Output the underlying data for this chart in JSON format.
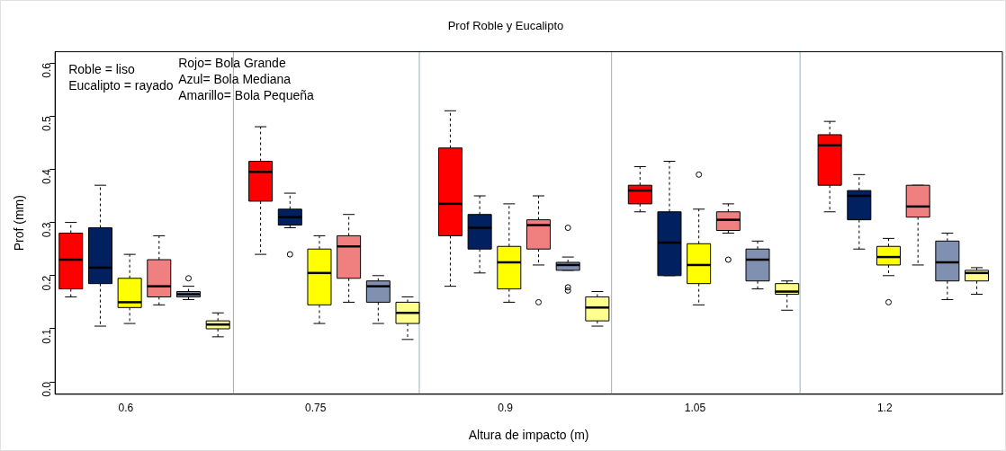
{
  "chart_data": {
    "type": "box",
    "title": "Prof Roble y Eucalipto",
    "xlabel": "Altura de impacto (m)",
    "ylabel": "Prof (mm)",
    "annotations": [
      "Roble = liso",
      "Eucalipto = rayado",
      "Rojo= Bola Grande",
      "Azul= Bola Mediana",
      "Amarillo= Bola Pequeña"
    ],
    "x": [
      0.6,
      0.75,
      0.9,
      1.05,
      1.2
    ],
    "xlim": [
      0.544,
      1.293
    ],
    "xticks": [
      0.6,
      0.75,
      0.9,
      1.05,
      1.2
    ],
    "ylim": [
      -0.023,
      0.621
    ],
    "yticks": [
      {
        "value": 0,
        "label": "0.0"
      },
      {
        "value": 0.1,
        "label": "0.1"
      },
      {
        "value": 0.2,
        "label": "0.2"
      },
      {
        "value": 0.3,
        "label": "0.3"
      },
      {
        "value": 0.4,
        "label": "0.4"
      },
      {
        "value": 0.5,
        "label": "0.5"
      },
      {
        "value": 0.6,
        "label": "0.6"
      }
    ],
    "grid": false,
    "legend": false,
    "ref_lines": [
      {
        "axis": "x",
        "value": 0.685,
        "color": "#8db4cc"
      },
      {
        "axis": "x",
        "value": 0.832,
        "color": "#8db4cc"
      },
      {
        "axis": "x",
        "value": 0.984,
        "color": "#8db4cc"
      },
      {
        "axis": "x",
        "value": 1.133,
        "color": "#8db4cc"
      }
    ],
    "series": [
      {
        "color": "#ff0000",
        "boxes": [
          {
            "low": 0.16,
            "q1": 0.175,
            "median": 0.23,
            "q3": 0.28,
            "high": 0.3
          },
          {
            "low": 0.24,
            "q1": 0.34,
            "median": 0.395,
            "q3": 0.415,
            "high": 0.48
          },
          {
            "low": 0.18,
            "q1": 0.275,
            "median": 0.335,
            "q3": 0.44,
            "high": 0.51
          },
          {
            "low": 0.32,
            "q1": 0.335,
            "median": 0.36,
            "q3": 0.37,
            "high": 0.405
          },
          {
            "low": 0.32,
            "q1": 0.37,
            "median": 0.445,
            "q3": 0.465,
            "high": 0.49
          }
        ]
      },
      {
        "color": "#002060",
        "boxes": [
          {
            "low": 0.105,
            "q1": 0.185,
            "median": 0.215,
            "q3": 0.29,
            "high": 0.37
          },
          {
            "low": 0.29,
            "q1": 0.295,
            "median": 0.31,
            "q3": 0.325,
            "high": 0.355,
            "outliers": [
              0.24
            ]
          },
          {
            "low": 0.205,
            "q1": 0.25,
            "median": 0.29,
            "q3": 0.315,
            "high": 0.35
          },
          {
            "low": 0.2,
            "q1": 0.2,
            "median": 0.262,
            "q3": 0.32,
            "high": 0.415
          },
          {
            "low": 0.25,
            "q1": 0.305,
            "median": 0.35,
            "q3": 0.36,
            "high": 0.39
          }
        ]
      },
      {
        "color": "#ffff00",
        "boxes": [
          {
            "low": 0.11,
            "q1": 0.14,
            "median": 0.15,
            "q3": 0.195,
            "high": 0.24
          },
          {
            "low": 0.11,
            "q1": 0.145,
            "median": 0.205,
            "q3": 0.25,
            "high": 0.275
          },
          {
            "low": 0.15,
            "q1": 0.175,
            "median": 0.225,
            "q3": 0.255,
            "high": 0.335
          },
          {
            "low": 0.145,
            "q1": 0.185,
            "median": 0.22,
            "q3": 0.26,
            "high": 0.325,
            "outliers": [
              0.39
            ]
          },
          {
            "low": 0.2,
            "q1": 0.22,
            "median": 0.235,
            "q3": 0.255,
            "high": 0.27,
            "outliers": [
              0.15
            ]
          }
        ]
      },
      {
        "color": "#f08080",
        "boxes": [
          {
            "low": 0.145,
            "q1": 0.16,
            "median": 0.18,
            "q3": 0.23,
            "high": 0.275
          },
          {
            "low": 0.15,
            "q1": 0.195,
            "median": 0.255,
            "q3": 0.275,
            "high": 0.315
          },
          {
            "low": 0.22,
            "q1": 0.25,
            "median": 0.295,
            "q3": 0.305,
            "high": 0.35,
            "outliers": [
              0.15
            ]
          },
          {
            "low": 0.28,
            "q1": 0.285,
            "median": 0.305,
            "q3": 0.32,
            "high": 0.335,
            "outliers": [
              0.23
            ]
          },
          {
            "low": 0.22,
            "q1": 0.31,
            "median": 0.33,
            "q3": 0.37,
            "high": 0.37
          }
        ]
      },
      {
        "color": "#8090b0",
        "boxes": [
          {
            "low": 0.155,
            "q1": 0.16,
            "median": 0.165,
            "q3": 0.17,
            "high": 0.18,
            "outliers": [
              0.195
            ]
          },
          {
            "low": 0.11,
            "q1": 0.15,
            "median": 0.18,
            "q3": 0.19,
            "high": 0.2
          },
          {
            "low": 0.21,
            "q1": 0.21,
            "median": 0.22,
            "q3": 0.225,
            "high": 0.235,
            "outliers": [
              0.29,
              0.178,
              0.172
            ]
          },
          {
            "low": 0.175,
            "q1": 0.19,
            "median": 0.23,
            "q3": 0.25,
            "high": 0.265
          },
          {
            "low": 0.155,
            "q1": 0.19,
            "median": 0.225,
            "q3": 0.265,
            "high": 0.28
          }
        ]
      },
      {
        "color": "#ffff90",
        "boxes": [
          {
            "low": 0.085,
            "q1": 0.1,
            "median": 0.108,
            "q3": 0.115,
            "high": 0.13
          },
          {
            "low": 0.08,
            "q1": 0.11,
            "median": 0.13,
            "q3": 0.15,
            "high": 0.16
          },
          {
            "low": 0.105,
            "q1": 0.115,
            "median": 0.14,
            "q3": 0.16,
            "high": 0.17
          },
          {
            "low": 0.135,
            "q1": 0.165,
            "median": 0.17,
            "q3": 0.185,
            "high": 0.19
          },
          {
            "low": 0.165,
            "q1": 0.19,
            "median": 0.205,
            "q3": 0.21,
            "high": 0.215
          }
        ]
      }
    ]
  }
}
